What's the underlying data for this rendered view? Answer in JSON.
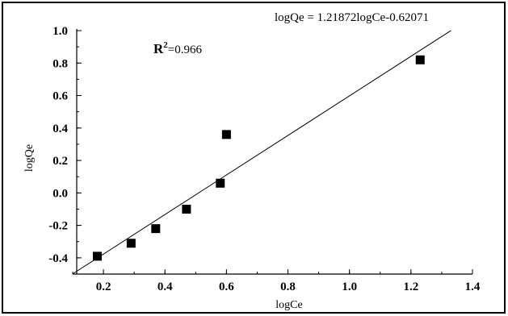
{
  "chart_data": {
    "type": "scatter",
    "title": "",
    "equation": "logQe = 1.21872logCe-0.62071",
    "r2_symbol": "R",
    "r2_sup": "2",
    "r2_value": "=0.966",
    "xlabel": "logCe",
    "ylabel": "logQe",
    "xlim": [
      0.1,
      1.4
    ],
    "ylim": [
      -0.5,
      1.0
    ],
    "xticks": [
      "0.2",
      "0.4",
      "0.6",
      "0.8",
      "1.0",
      "1.2",
      "1.4"
    ],
    "yticks": [
      "-0.4",
      "-0.2",
      "0.0",
      "0.2",
      "0.4",
      "0.6",
      "0.8",
      "1.0"
    ],
    "grid": false,
    "series": [
      {
        "marker": "square",
        "points": [
          {
            "x": 0.18,
            "y": -0.39
          },
          {
            "x": 0.29,
            "y": -0.31
          },
          {
            "x": 0.37,
            "y": -0.22
          },
          {
            "x": 0.47,
            "y": -0.1
          },
          {
            "x": 0.58,
            "y": 0.06
          },
          {
            "x": 0.6,
            "y": 0.36
          },
          {
            "x": 1.23,
            "y": 0.82
          }
        ]
      }
    ],
    "fit_line": {
      "slope": 1.21872,
      "intercept": -0.62071,
      "x_range": [
        0.1,
        1.33
      ]
    }
  }
}
